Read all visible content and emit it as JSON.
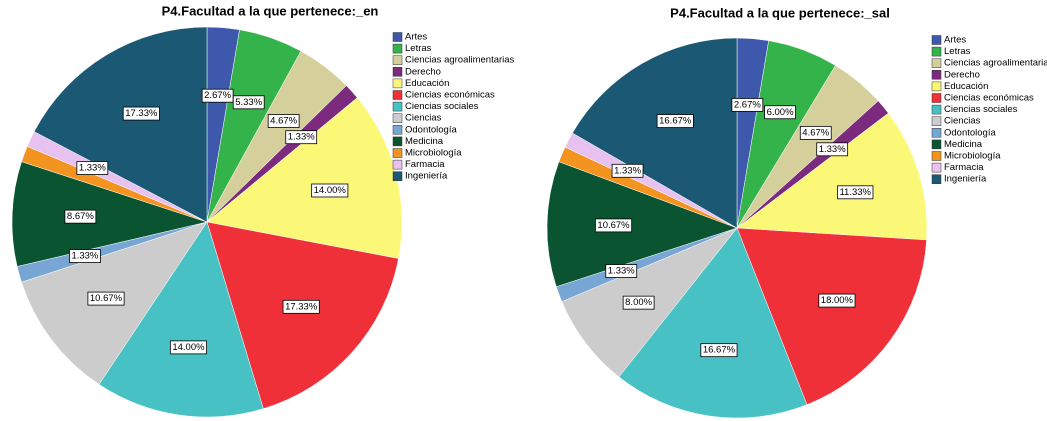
{
  "chart_data": [
    {
      "type": "pie",
      "title": "P4.Facultad a la que pertenece:_en",
      "categories": [
        "Artes",
        "Letras",
        "Ciencias agroalimentarias",
        "Derecho",
        "Educación",
        "Ciencias económicas",
        "Ciencias sociales",
        "Ciencias",
        "Odontología",
        "Medicina",
        "Microbiología",
        "Farmacia",
        "Ingeniería"
      ],
      "values": [
        2.67,
        5.33,
        4.67,
        1.33,
        14.0,
        17.33,
        14.0,
        10.67,
        1.33,
        8.67,
        1.33,
        1.33,
        17.33
      ],
      "value_labels": [
        "2.67%",
        "5.33%",
        "4.67%",
        "1.33%",
        "14.00%",
        "17.33%",
        "14.00%",
        "10.67%",
        "1.33%",
        "8.67%",
        null,
        "1.33%",
        "17.33%"
      ],
      "colors": [
        "#3e58ac",
        "#34b34a",
        "#d5cf9b",
        "#7b2a7d",
        "#fbf877",
        "#ef3039",
        "#48c1c5",
        "#cccccc",
        "#78a6d4",
        "#0a5431",
        "#f39320",
        "#e7c1f0",
        "#1b5873"
      ]
    },
    {
      "type": "pie",
      "title": "P4.Facultad a la que pertenece:_sal",
      "categories": [
        "Artes",
        "Letras",
        "Ciencias agroalimentarias",
        "Derecho",
        "Educación",
        "Ciencias económicas",
        "Ciencias sociales",
        "Ciencias",
        "Odontología",
        "Medicina",
        "Microbiología",
        "Farmacia",
        "Ingeniería"
      ],
      "values": [
        2.67,
        6.0,
        4.67,
        1.33,
        11.33,
        18.0,
        16.67,
        8.0,
        1.33,
        10.67,
        1.33,
        1.33,
        16.67
      ],
      "value_labels": [
        "2.67%",
        "6.00%",
        "4.67%",
        "1.33%",
        "11.33%",
        "18.00%",
        "16.67%",
        "8.00%",
        "1.33%",
        "10.67%",
        null,
        "1.33%",
        "16.67%"
      ],
      "colors": [
        "#3e58ac",
        "#34b34a",
        "#d5cf9b",
        "#7b2a7d",
        "#fbf877",
        "#ef3039",
        "#48c1c5",
        "#cccccc",
        "#78a6d4",
        "#0a5431",
        "#f39320",
        "#e7c1f0",
        "#1b5873"
      ]
    }
  ]
}
